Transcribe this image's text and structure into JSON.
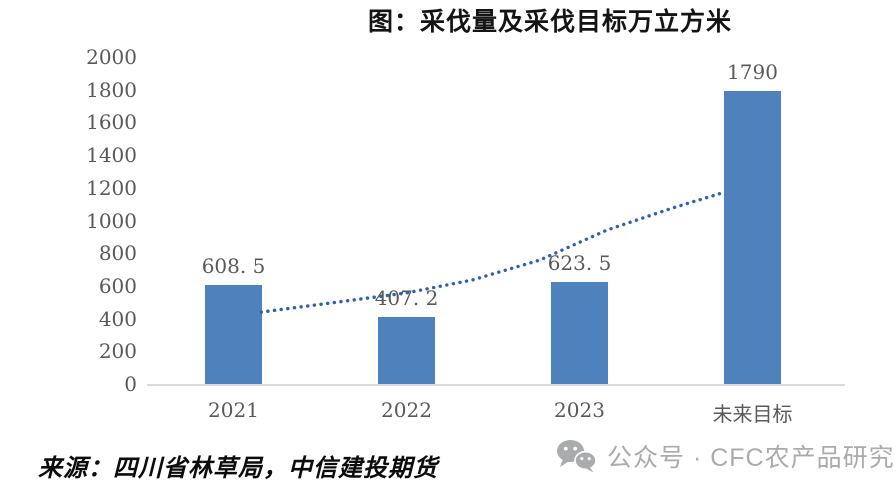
{
  "title": "图：采伐量及采伐目标万立方米",
  "chart_data": {
    "type": "bar",
    "title": "图：采伐量及采伐目标万立方米",
    "categories": [
      "2021",
      "2022",
      "2023",
      "未来目标"
    ],
    "values": [
      608.5,
      407.2,
      623.5,
      1790
    ],
    "value_labels": [
      "608. 5",
      "407. 2",
      "623. 5",
      "1790"
    ],
    "xlabel": "",
    "ylabel": "",
    "ylim": [
      0,
      2000
    ],
    "ytick_step": 200,
    "grid": false,
    "legend": "none",
    "bar_color": "#4f81bd",
    "axis_label_color": "#595959",
    "baseline_color": "#d9d9d9",
    "trendline": {
      "style": "dotted",
      "color": "#3160a8",
      "points_catindex_value": [
        [
          0.16,
          440
        ],
        [
          0.61,
          502
        ],
        [
          1.0,
          557
        ],
        [
          1.38,
          636
        ],
        [
          1.77,
          758
        ],
        [
          2.16,
          942
        ],
        [
          2.54,
          1077
        ],
        [
          2.84,
          1174
        ]
      ]
    }
  },
  "source_note": "来源：四川省林草局，中信建投期货",
  "watermark": {
    "icon": "wechat-icon",
    "text": "公众号 · CFC农产品研究",
    "color": "#aaabad"
  }
}
